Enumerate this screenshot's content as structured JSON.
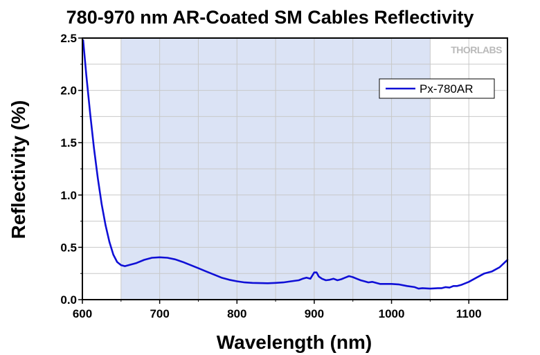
{
  "chart_data": {
    "type": "line",
    "title": "780-970 nm AR-Coated SM Cables Reflectivity",
    "xlabel": "Wavelength (nm)",
    "ylabel": "Reflectivity (%)",
    "xlim": [
      600,
      1150
    ],
    "ylim": [
      0,
      2.5
    ],
    "xticks": [
      600,
      700,
      800,
      900,
      1000,
      1100
    ],
    "xtick_labels": [
      "600",
      "700",
      "800",
      "900",
      "1000",
      "1100"
    ],
    "yticks": [
      0,
      0.5,
      1.0,
      1.5,
      2.0,
      2.5
    ],
    "ytick_labels": [
      "0.0",
      "0.5",
      "1.0",
      "1.5",
      "2.0",
      "2.5"
    ],
    "grid": true,
    "shaded_band": {
      "x0": 650,
      "x1": 1050,
      "color": "#dbe3f5"
    },
    "legend_position": "top-right",
    "brand": "THORLABS",
    "colors": {
      "line": "#0f0fd6",
      "band": "#dbe3f5",
      "grid": "#c8c8c8"
    },
    "series": [
      {
        "name": "Px-780AR",
        "x": [
          601,
          605,
          610,
          615,
          620,
          625,
          630,
          635,
          640,
          645,
          650,
          655,
          660,
          670,
          680,
          690,
          700,
          710,
          720,
          730,
          740,
          750,
          760,
          770,
          780,
          790,
          800,
          810,
          820,
          830,
          840,
          850,
          860,
          870,
          880,
          885,
          890,
          895,
          900,
          903,
          906,
          910,
          915,
          920,
          925,
          930,
          935,
          940,
          945,
          950,
          955,
          960,
          965,
          970,
          975,
          980,
          985,
          990,
          1000,
          1010,
          1020,
          1030,
          1035,
          1040,
          1050,
          1060,
          1065,
          1070,
          1075,
          1080,
          1085,
          1090,
          1100,
          1110,
          1120,
          1130,
          1140,
          1150
        ],
        "y": [
          2.48,
          2.15,
          1.78,
          1.45,
          1.16,
          0.91,
          0.71,
          0.55,
          0.43,
          0.36,
          0.33,
          0.32,
          0.33,
          0.35,
          0.38,
          0.4,
          0.405,
          0.4,
          0.385,
          0.36,
          0.33,
          0.3,
          0.27,
          0.24,
          0.21,
          0.19,
          0.175,
          0.165,
          0.16,
          0.158,
          0.157,
          0.16,
          0.165,
          0.175,
          0.185,
          0.2,
          0.21,
          0.2,
          0.26,
          0.26,
          0.22,
          0.2,
          0.185,
          0.19,
          0.2,
          0.185,
          0.195,
          0.21,
          0.225,
          0.215,
          0.2,
          0.185,
          0.175,
          0.165,
          0.17,
          0.16,
          0.15,
          0.15,
          0.15,
          0.145,
          0.13,
          0.12,
          0.105,
          0.11,
          0.105,
          0.11,
          0.11,
          0.12,
          0.115,
          0.13,
          0.13,
          0.14,
          0.17,
          0.21,
          0.25,
          0.27,
          0.31,
          0.38
        ]
      }
    ]
  }
}
